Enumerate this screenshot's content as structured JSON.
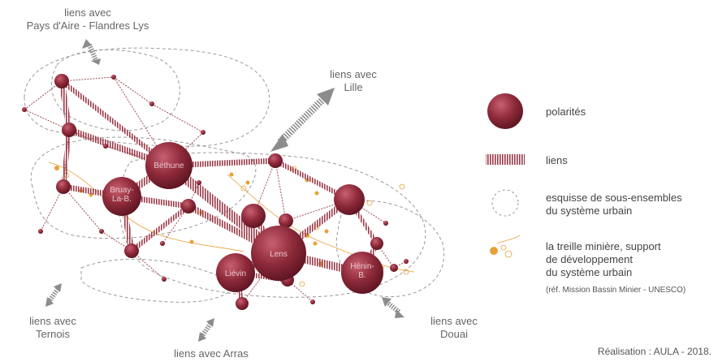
{
  "external_links": {
    "pays_aire": "liens avec\nPays d'Aire - Flandres Lys",
    "lille": "liens avec\nLille",
    "ternois": "liens avec\nTernois",
    "arras": "liens avec Arras",
    "douai": "liens avec\nDouai"
  },
  "polarity_labels": {
    "bethune": "Béthune",
    "bruay": "Bruay-\nLa-B.",
    "lens": "Lens",
    "lievin": "Liévin",
    "henin": "Hénin-\nB."
  },
  "legend": {
    "polarites": "polarités",
    "liens": "liens",
    "esquisse": "esquisse de sous-ensembles\ndu système urbain",
    "treille": "la treille minière, support\nde développement\ndu système urbain",
    "treille_ref": "(réf. Mission Bassin Minier - UNESCO)"
  },
  "credit": "Réalisation : AULA - 2018.",
  "colors": {
    "node": "#8b2535",
    "link": "#9b3a48",
    "dashed": "#9a9a9a",
    "arrow": "#8c8c8c",
    "treille": "#e8a13a"
  }
}
